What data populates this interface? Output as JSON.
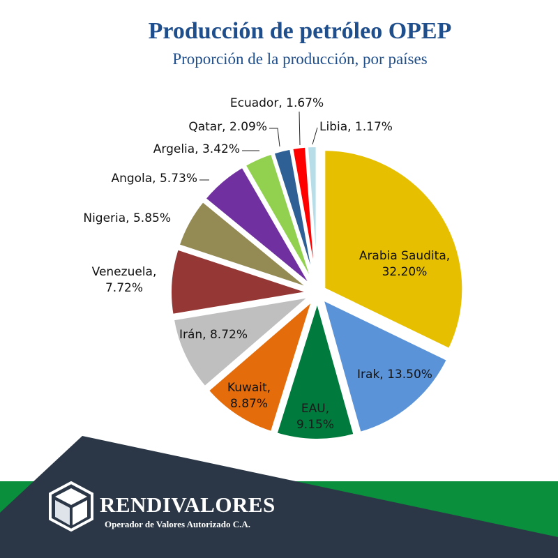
{
  "chart_data": {
    "type": "pie",
    "title": "Producción de petróleo OPEP",
    "subtitle": "Proporción de la producción, por países",
    "slices": [
      {
        "label": "Arabia Saudita",
        "value": 32.2,
        "text": "Arabia Saudita,|32.20%",
        "color": "#e6c000"
      },
      {
        "label": "Irak",
        "value": 13.5,
        "text": "Irak, 13.50%",
        "color": "#5b93d8"
      },
      {
        "label": "EAU",
        "value": 9.15,
        "text": "EAU,|9.15%",
        "color": "#007a3d"
      },
      {
        "label": "Kuwait",
        "value": 8.87,
        "text": "Kuwait,|8.87%",
        "color": "#e46c0a"
      },
      {
        "label": "Irán",
        "value": 8.72,
        "text": "Irán, 8.72%",
        "color": "#bfbfbf"
      },
      {
        "label": "Venezuela",
        "value": 7.72,
        "text": "Venezuela,|7.72%",
        "color": "#953735"
      },
      {
        "label": "Nigeria",
        "value": 5.85,
        "text": "Nigeria, 5.85%",
        "color": "#948a54"
      },
      {
        "label": "Angola",
        "value": 5.73,
        "text": "Angola, 5.73%",
        "color": "#7030a0"
      },
      {
        "label": "Argelia",
        "value": 3.42,
        "text": "Argelia, 3.42%",
        "color": "#92d050"
      },
      {
        "label": "Qatar",
        "value": 2.09,
        "text": "Qatar, 2.09%",
        "color": "#2e6096"
      },
      {
        "label": "Ecuador",
        "value": 1.67,
        "text": "Ecuador, 1.67%",
        "color": "#ff0000"
      },
      {
        "label": "Libia",
        "value": 1.17,
        "text": "Libia, 1.17%",
        "color": "#b7dde8"
      }
    ]
  },
  "footer": {
    "brand": "RENDIVALORES",
    "tagline": "Operador de Valores Autorizado C.A.",
    "colors": {
      "green": "#0a8f3c",
      "navy": "#2b3746"
    }
  }
}
